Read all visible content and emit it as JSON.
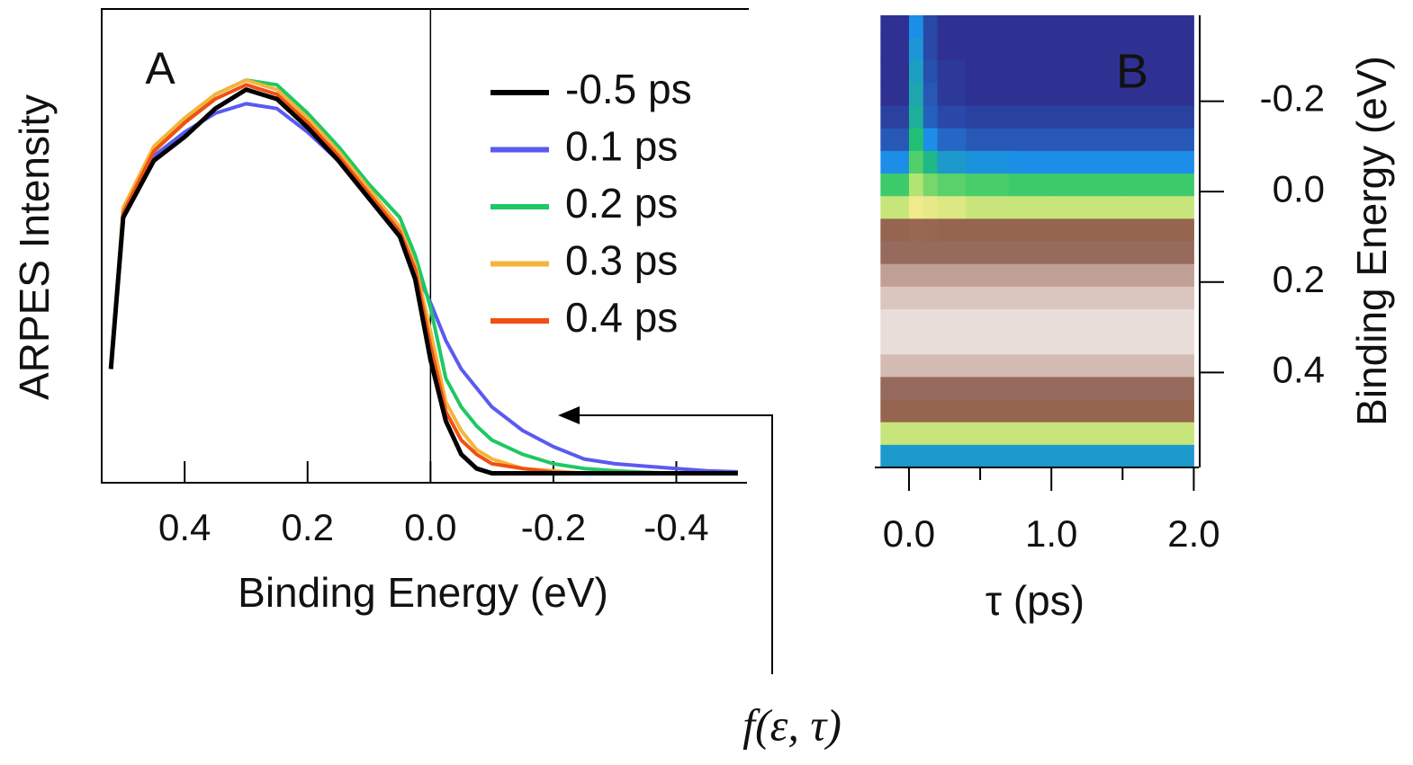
{
  "chart_data": [
    {
      "type": "line",
      "panel_label": "A",
      "xlabel": "Binding Energy (eV)",
      "ylabel": "ARPES Intensity",
      "xlim": [
        0.535,
        -0.515
      ],
      "ylim": [
        0,
        1
      ],
      "xticks": [
        0.4,
        0.2,
        {
          "value": 0,
          "label": "0.0"
        },
        -0.2,
        -0.4
      ],
      "x": [
        0.52,
        0.5,
        0.45,
        0.4,
        0.35,
        0.3,
        0.25,
        0.2,
        0.15,
        0.1,
        0.05,
        0.025,
        0,
        -0.025,
        -0.05,
        -0.075,
        -0.1,
        -0.15,
        -0.2,
        -0.25,
        -0.3,
        -0.35,
        -0.4,
        -0.45,
        -0.5
      ],
      "series": [
        {
          "name": "-0.5 ps",
          "color": "#000000",
          "values": [
            0.24,
            0.56,
            0.68,
            0.73,
            0.79,
            0.83,
            0.81,
            0.75,
            0.68,
            0.6,
            0.52,
            0.43,
            0.26,
            0.13,
            0.06,
            0.03,
            0.02,
            0.02,
            0.02,
            0.02,
            0.02,
            0.02,
            0.02,
            0.02,
            0.02
          ]
        },
        {
          "name": "0.1 ps",
          "color": "#5a5af0",
          "values": [
            0.24,
            0.57,
            0.69,
            0.74,
            0.78,
            0.8,
            0.79,
            0.74,
            0.68,
            0.6,
            0.53,
            0.45,
            0.38,
            0.3,
            0.24,
            0.2,
            0.16,
            0.11,
            0.076,
            0.05,
            0.04,
            0.035,
            0.03,
            0.025,
            0.023
          ]
        },
        {
          "name": "0.2 ps",
          "color": "#1ec864",
          "values": [
            0.24,
            0.57,
            0.7,
            0.76,
            0.82,
            0.85,
            0.84,
            0.78,
            0.71,
            0.63,
            0.56,
            0.48,
            0.37,
            0.22,
            0.16,
            0.12,
            0.09,
            0.06,
            0.04,
            0.03,
            0.025,
            0.022,
            0.02,
            0.02,
            0.02
          ]
        },
        {
          "name": "0.3 ps",
          "color": "#f5b43c",
          "values": [
            0.24,
            0.58,
            0.71,
            0.77,
            0.82,
            0.85,
            0.83,
            0.77,
            0.7,
            0.62,
            0.54,
            0.46,
            0.32,
            0.17,
            0.11,
            0.07,
            0.05,
            0.03,
            0.025,
            0.02,
            0.02,
            0.02,
            0.02,
            0.02,
            0.02
          ]
        },
        {
          "name": "0.4 ps",
          "color": "#f05014",
          "values": [
            0.24,
            0.57,
            0.7,
            0.76,
            0.81,
            0.84,
            0.82,
            0.76,
            0.69,
            0.61,
            0.53,
            0.45,
            0.29,
            0.15,
            0.09,
            0.06,
            0.04,
            0.03,
            0.022,
            0.02,
            0.02,
            0.02,
            0.02,
            0.02,
            0.02
          ]
        }
      ],
      "annotation": "f(ε, τ)"
    },
    {
      "type": "heatmap",
      "panel_label": "B",
      "xlabel": "τ (ps)",
      "ylabel": "Binding Energy (eV)",
      "xlim": [
        -0.24,
        2.01
      ],
      "ylim": [
        -0.39,
        0.61
      ],
      "xticks": [
        {
          "value": 0,
          "label": "0.0"
        },
        {
          "value": 1,
          "label": "1.0"
        },
        {
          "value": 2,
          "label": "2.0"
        }
      ],
      "minor_xticks": [
        0.5,
        1.5
      ],
      "yticks": [
        -0.2,
        {
          "value": 0,
          "label": "0.0"
        },
        0.2,
        0.4
      ],
      "x_edges": [
        -0.2,
        0,
        0.1,
        0.2,
        0.4,
        0.7,
        1.0,
        1.5,
        2.0
      ],
      "y_edges": [
        -0.39,
        -0.34,
        -0.29,
        -0.24,
        -0.19,
        -0.14,
        -0.09,
        -0.04,
        0.01,
        0.06,
        0.11,
        0.16,
        0.21,
        0.26,
        0.31,
        0.36,
        0.41,
        0.46,
        0.51,
        0.56,
        0.61
      ],
      "colorscale": [
        [
          0,
          "#2e3192"
        ],
        [
          0.12,
          "#1c8ee8"
        ],
        [
          0.25,
          "#20c46a"
        ],
        [
          0.38,
          "#9ee06a"
        ],
        [
          0.46,
          "#f0ea8c"
        ],
        [
          0.55,
          "#9a6a50"
        ],
        [
          0.65,
          "#8a5a4c"
        ],
        [
          0.8,
          "#c8aaa0"
        ],
        [
          1,
          "#f4eeee"
        ]
      ],
      "z": [
        [
          0,
          0.12,
          0.03,
          0,
          0,
          0,
          0,
          0
        ],
        [
          0,
          0.14,
          0.03,
          0,
          0,
          0,
          0,
          0
        ],
        [
          0,
          0.16,
          0.04,
          0.01,
          0,
          0,
          0,
          0
        ],
        [
          0,
          0.18,
          0.05,
          0.01,
          0,
          0,
          0,
          0
        ],
        [
          0.02,
          0.2,
          0.06,
          0.03,
          0.02,
          0.02,
          0.02,
          0.02
        ],
        [
          0.05,
          0.24,
          0.12,
          0.07,
          0.05,
          0.05,
          0.05,
          0.05
        ],
        [
          0.12,
          0.3,
          0.22,
          0.15,
          0.13,
          0.12,
          0.12,
          0.12
        ],
        [
          0.28,
          0.4,
          0.34,
          0.31,
          0.29,
          0.28,
          0.28,
          0.28
        ],
        [
          0.42,
          0.46,
          0.45,
          0.44,
          0.42,
          0.42,
          0.42,
          0.42
        ],
        [
          0.58,
          0.56,
          0.57,
          0.58,
          0.58,
          0.58,
          0.58,
          0.58
        ],
        [
          0.68,
          0.68,
          0.68,
          0.68,
          0.68,
          0.68,
          0.68,
          0.68
        ],
        [
          0.78,
          0.78,
          0.78,
          0.78,
          0.78,
          0.78,
          0.78,
          0.78
        ],
        [
          0.88,
          0.88,
          0.88,
          0.88,
          0.88,
          0.88,
          0.88,
          0.88
        ],
        [
          0.95,
          0.95,
          0.95,
          0.95,
          0.95,
          0.95,
          0.95,
          0.95
        ],
        [
          0.95,
          0.95,
          0.95,
          0.95,
          0.95,
          0.95,
          0.95,
          0.95
        ],
        [
          0.85,
          0.85,
          0.85,
          0.85,
          0.85,
          0.85,
          0.85,
          0.85
        ],
        [
          0.68,
          0.68,
          0.68,
          0.68,
          0.68,
          0.68,
          0.68,
          0.68
        ],
        [
          0.58,
          0.58,
          0.58,
          0.58,
          0.58,
          0.58,
          0.58,
          0.58
        ],
        [
          0.42,
          0.42,
          0.42,
          0.42,
          0.42,
          0.42,
          0.42,
          0.42
        ],
        [
          0.15,
          0.15,
          0.15,
          0.15,
          0.15,
          0.15,
          0.15,
          0.15
        ]
      ]
    }
  ]
}
